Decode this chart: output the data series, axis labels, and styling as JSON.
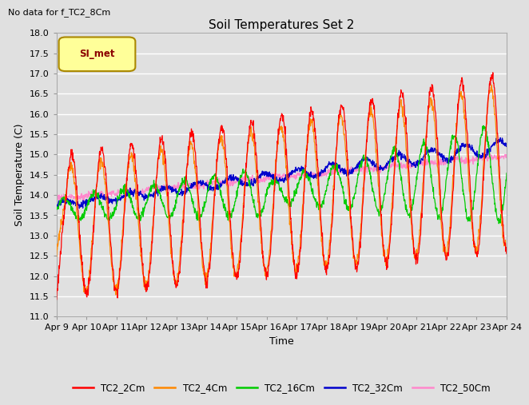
{
  "title": "Soil Temperatures Set 2",
  "subtitle": "No data for f_TC2_8Cm",
  "xlabel": "Time",
  "ylabel": "Soil Temperature (C)",
  "ylim": [
    11.0,
    18.0
  ],
  "yticks": [
    11.0,
    11.5,
    12.0,
    12.5,
    13.0,
    13.5,
    14.0,
    14.5,
    15.0,
    15.5,
    16.0,
    16.5,
    17.0,
    17.5,
    18.0
  ],
  "xtick_labels": [
    "Apr 9",
    "Apr 10",
    "Apr 11",
    "Apr 12",
    "Apr 13",
    "Apr 14",
    "Apr 15",
    "Apr 16",
    "Apr 17",
    "Apr 18",
    "Apr 19",
    "Apr 20",
    "Apr 21",
    "Apr 22",
    "Apr 23",
    "Apr 24"
  ],
  "series_colors": {
    "TC2_2Cm": "#ff0000",
    "TC2_4Cm": "#ff8800",
    "TC2_16Cm": "#00cc00",
    "TC2_32Cm": "#0000cc",
    "TC2_50Cm": "#ff88cc"
  },
  "legend_label": "SI_met",
  "background_color": "#e0e0e0",
  "grid_color": "#ffffff",
  "n_points": 1440,
  "days": 15
}
